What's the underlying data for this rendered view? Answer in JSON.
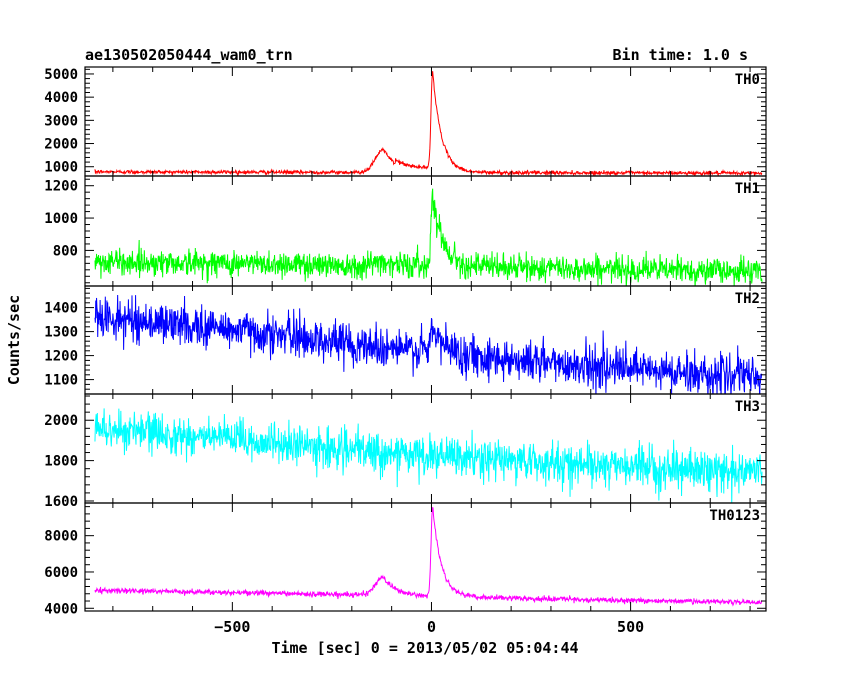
{
  "header": {
    "title": "ae130502050444_wam0_trn",
    "bin_time": "Bin time: 1.0 s"
  },
  "chart_data": {
    "type": "line",
    "xlabel": "Time [sec] 0 = 2013/05/02 05:04:44",
    "ylabel": "Counts/sec",
    "xlim": [
      -870,
      840
    ],
    "x_ticks": [
      -500,
      0,
      500
    ],
    "x_tick_labels": [
      "−500",
      "0",
      "500"
    ],
    "x_range": [
      -845,
      830
    ],
    "panels": [
      {
        "name": "TH0",
        "color": "#ff0000",
        "ylim": [
          600,
          5300
        ],
        "yticks": [
          1000,
          2000,
          3000,
          4000,
          5000
        ],
        "baseline_points": [
          [
            -845,
            780
          ],
          [
            -600,
            770
          ],
          [
            -300,
            760
          ],
          [
            0,
            750
          ],
          [
            300,
            740
          ],
          [
            600,
            730
          ],
          [
            830,
            720
          ]
        ],
        "noise": 40,
        "peaks": [
          {
            "t0": -120,
            "amp": 1000,
            "rise": 20,
            "decay": 30
          },
          {
            "t0": 3,
            "amp": 4350,
            "rise": 4,
            "decay": 22
          }
        ],
        "shoulder": {
          "from": -90,
          "to": 0,
          "amp": 180
        }
      },
      {
        "name": "TH1",
        "color": "#00ff00",
        "ylim": [
          580,
          1260
        ],
        "yticks": [
          800,
          1000,
          1200
        ],
        "baseline_points": [
          [
            -845,
            730
          ],
          [
            -500,
            720
          ],
          [
            -200,
            710
          ],
          [
            0,
            705
          ],
          [
            300,
            690
          ],
          [
            600,
            680
          ],
          [
            830,
            670
          ]
        ],
        "noise": 40,
        "peaks": [
          {
            "t0": -120,
            "amp": 25,
            "rise": 20,
            "decay": 30
          },
          {
            "t0": 3,
            "amp": 450,
            "rise": 4,
            "decay": 25
          }
        ]
      },
      {
        "name": "TH2",
        "color": "#0000ff",
        "ylim": [
          1040,
          1490
        ],
        "yticks": [
          1100,
          1200,
          1300,
          1400
        ],
        "baseline_points": [
          [
            -845,
            1360
          ],
          [
            -500,
            1310
          ],
          [
            -200,
            1250
          ],
          [
            0,
            1215
          ],
          [
            300,
            1170
          ],
          [
            600,
            1130
          ],
          [
            830,
            1110
          ]
        ],
        "noise": 42,
        "peaks": [
          {
            "t0": 3,
            "amp": 90,
            "rise": 5,
            "decay": 30
          }
        ]
      },
      {
        "name": "TH3",
        "color": "#00ffff",
        "ylim": [
          1590,
          2130
        ],
        "yticks": [
          1600,
          1800,
          2000
        ],
        "baseline_points": [
          [
            -845,
            1960
          ],
          [
            -500,
            1905
          ],
          [
            -200,
            1850
          ],
          [
            0,
            1820
          ],
          [
            300,
            1790
          ],
          [
            600,
            1760
          ],
          [
            830,
            1745
          ]
        ],
        "noise": 48,
        "peaks": []
      },
      {
        "name": "TH0123",
        "color": "#ff00ff",
        "ylim": [
          3850,
          9800
        ],
        "yticks": [
          4000,
          6000,
          8000
        ],
        "baseline_points": [
          [
            -845,
            5000
          ],
          [
            -500,
            4870
          ],
          [
            -200,
            4750
          ],
          [
            0,
            4650
          ],
          [
            300,
            4500
          ],
          [
            600,
            4400
          ],
          [
            830,
            4330
          ]
        ],
        "noise": 70,
        "peaks": [
          {
            "t0": -120,
            "amp": 1000,
            "rise": 20,
            "decay": 30
          },
          {
            "t0": 3,
            "amp": 4900,
            "rise": 4,
            "decay": 22
          }
        ]
      }
    ]
  }
}
